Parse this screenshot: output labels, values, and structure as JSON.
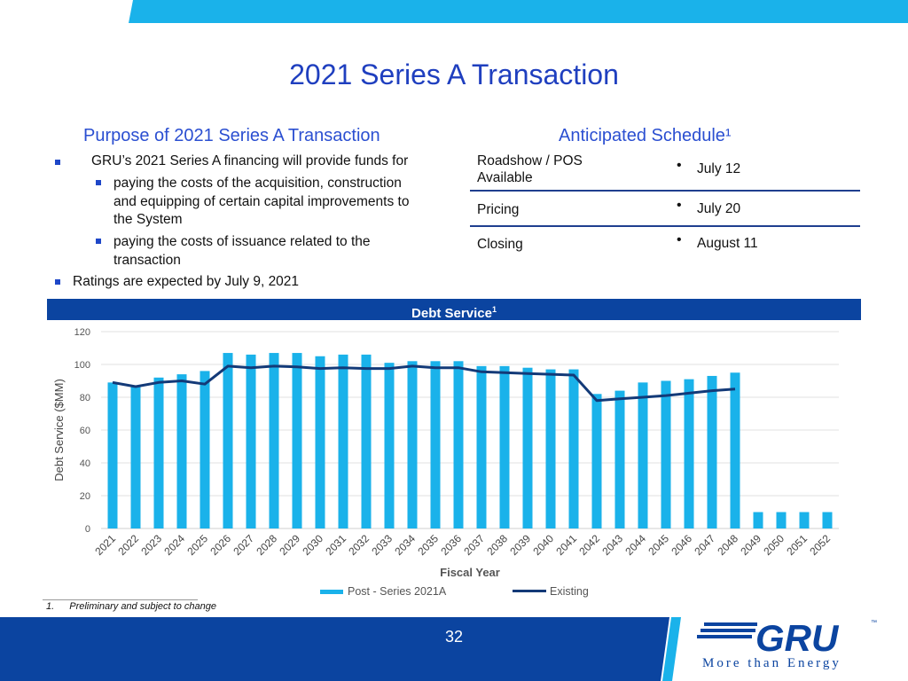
{
  "slide": {
    "title": "2021 Series A Transaction",
    "page_number": "32"
  },
  "purpose": {
    "heading": "Purpose of 2021 Series A Transaction",
    "bullets": [
      "GRU’s 2021 Series A financing will provide funds for",
      "paying the costs of the acquisition, construction",
      "and equipping of certain capital improvements to",
      "the System",
      "paying the costs of issuance related to the",
      "transaction",
      "Ratings are expected by July 9, 2021"
    ]
  },
  "schedule": {
    "heading": "Anticipated Schedule¹",
    "rows": [
      {
        "event_line1": "Roadshow / POS",
        "event_line2": "Available",
        "date": "July 12"
      },
      {
        "event_line1": "Pricing",
        "event_line2": "",
        "date": "July 20"
      },
      {
        "event_line1": "Closing",
        "event_line2": "",
        "date": "August 11"
      }
    ]
  },
  "chart_header": {
    "label": "Debt Service",
    "sup": "1"
  },
  "legend": {
    "bars": "Post - Series 2021A",
    "line": "Existing"
  },
  "footnote": {
    "number": "1.",
    "text": "Preliminary and subject to change"
  },
  "logo": {
    "wordmark": "GRU",
    "tagline": "More than Energy",
    "tm": "™"
  },
  "colors": {
    "bar": "#1ab2ea",
    "line": "#133a78",
    "brand_blue": "#0b44a0",
    "accent_cyan": "#1ab2ea"
  },
  "chart_data": {
    "type": "bar",
    "title": "Debt Service¹",
    "xlabel": "Fiscal Year",
    "ylabel": "Debt Service ($MM)",
    "ylim": [
      0,
      120
    ],
    "yticks": [
      0,
      20,
      40,
      60,
      80,
      100,
      120
    ],
    "grid": true,
    "legend_position": "bottom",
    "categories": [
      "2021",
      "2022",
      "2023",
      "2024",
      "2025",
      "2026",
      "2027",
      "2028",
      "2029",
      "2030",
      "2031",
      "2032",
      "2033",
      "2034",
      "2035",
      "2036",
      "2037",
      "2038",
      "2039",
      "2040",
      "2041",
      "2042",
      "2043",
      "2044",
      "2045",
      "2046",
      "2047",
      "2048",
      "2049",
      "2050",
      "2051",
      "2052"
    ],
    "series": [
      {
        "name": "Post - Series 2021A",
        "type": "bar",
        "values": [
          89,
          87,
          92,
          94,
          96,
          107,
          106,
          107,
          107,
          105,
          106,
          106,
          101,
          102,
          102,
          102,
          99,
          99,
          98,
          97,
          97,
          82,
          84,
          89,
          90,
          91,
          93,
          95,
          10,
          10,
          10,
          10
        ]
      },
      {
        "name": "Existing",
        "type": "line",
        "values": [
          89,
          86.5,
          89,
          90,
          88,
          99,
          98,
          99,
          98.5,
          97.5,
          98,
          97.5,
          97.5,
          99,
          98,
          98,
          95.5,
          95,
          94.5,
          94,
          93.5,
          78,
          79,
          80,
          81,
          82.5,
          84,
          85,
          null,
          null,
          null,
          null
        ]
      }
    ]
  }
}
